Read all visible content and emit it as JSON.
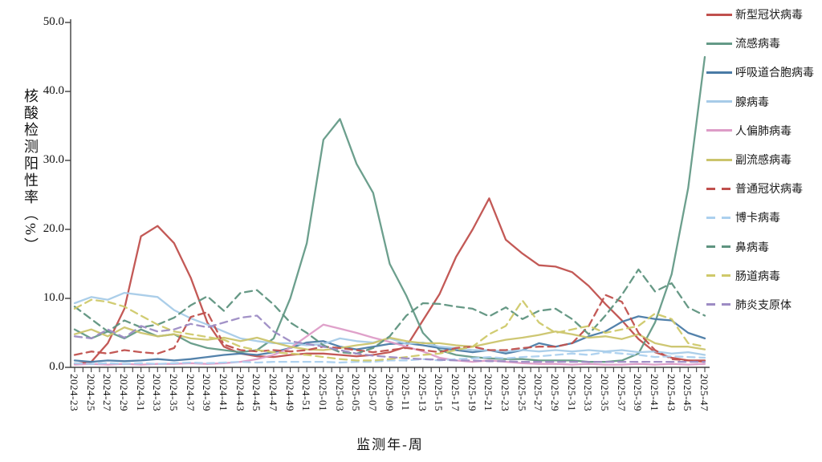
{
  "chart_data": {
    "type": "line",
    "title": "",
    "xlabel": "监测年-周",
    "ylabel": "核酸检测阳性率（%）",
    "ylim": [
      0,
      50
    ],
    "grid": false,
    "legend_position": "right",
    "ytick_values": [
      0,
      10,
      20,
      30,
      40,
      50
    ],
    "ytick_labels": [
      "0.0",
      "10.0",
      "20.0",
      "30.0",
      "40.0",
      "50.0"
    ],
    "x_tick_labels": [
      "2024-23",
      "2024-25",
      "2024-27",
      "2024-29",
      "2024-31",
      "2024-33",
      "2024-35",
      "2024-37",
      "2024-39",
      "2024-41",
      "2024-43",
      "2024-45",
      "2024-47",
      "2024-49",
      "2024-51",
      "2025-01",
      "2025-03",
      "2025-05",
      "2025-07",
      "2025-09",
      "2025-11",
      "2025-13",
      "2025-15",
      "2025-17",
      "2025-19",
      "2025-21",
      "2025-23",
      "2025-25",
      "2025-27",
      "2025-29",
      "2025-31",
      "2025-33",
      "2025-35",
      "2025-37",
      "2025-39",
      "2025-41",
      "2025-43",
      "2025-45",
      "2025-47"
    ],
    "series": [
      {
        "name": "新型冠状病毒",
        "color": "#c0504d",
        "style": "solid",
        "values": [
          0.5,
          0.8,
          3.5,
          8.5,
          19.0,
          20.5,
          18.0,
          13.0,
          6.5,
          3.0,
          2.0,
          1.6,
          1.5,
          1.8,
          2.0,
          2.0,
          1.8,
          1.6,
          1.8,
          2.2,
          3.0,
          6.8,
          10.6,
          16.0,
          20.0,
          24.5,
          18.5,
          16.5,
          14.8,
          14.6,
          13.8,
          11.8,
          9.2,
          6.8,
          4.1,
          2.2,
          1.4,
          1.0,
          1.0
        ]
      },
      {
        "name": "流感病毒",
        "color": "#649a87",
        "style": "solid",
        "values": [
          5.5,
          4.2,
          5.2,
          4.2,
          5.5,
          4.5,
          4.8,
          3.5,
          2.8,
          2.5,
          2.2,
          2.5,
          4.2,
          10.0,
          18.0,
          33.0,
          36.0,
          29.5,
          25.3,
          15.0,
          10.4,
          5.0,
          2.5,
          1.8,
          1.5,
          1.3,
          1.2,
          1.2,
          1.0,
          1.0,
          1.0,
          0.8,
          0.8,
          1.0,
          2.0,
          6.5,
          13.5,
          26.0,
          45.0
        ]
      },
      {
        "name": "呼吸道合胞病毒",
        "color": "#4a7ba6",
        "style": "solid",
        "values": [
          1.0,
          0.8,
          1.0,
          0.9,
          1.0,
          1.2,
          1.0,
          1.2,
          1.5,
          1.8,
          2.0,
          1.8,
          2.2,
          2.8,
          3.6,
          3.8,
          3.0,
          2.6,
          3.0,
          3.4,
          3.5,
          3.2,
          2.8,
          2.5,
          2.2,
          2.5,
          2.0,
          2.5,
          3.5,
          3.0,
          3.5,
          4.5,
          5.2,
          6.6,
          7.4,
          7.0,
          6.8,
          5.0,
          4.2
        ]
      },
      {
        "name": "腺病毒",
        "color": "#a7cbe8",
        "style": "solid",
        "values": [
          9.3,
          10.2,
          9.8,
          10.8,
          10.5,
          10.2,
          8.3,
          7.1,
          6.2,
          5.2,
          4.2,
          3.8,
          3.5,
          3.5,
          3.2,
          3.4,
          4.2,
          3.8,
          3.6,
          4.2,
          3.4,
          3.6,
          3.0,
          2.8,
          2.5,
          2.5,
          2.3,
          2.5,
          2.3,
          2.5,
          2.3,
          2.5,
          2.3,
          2.5,
          2.2,
          2.3,
          2.0,
          2.2,
          1.8
        ]
      },
      {
        "name": "人偏肺病毒",
        "color": "#dd9cc7",
        "style": "solid",
        "values": [
          0.4,
          0.5,
          0.4,
          0.5,
          0.4,
          0.5,
          0.5,
          0.6,
          0.5,
          0.6,
          0.8,
          1.2,
          1.8,
          2.8,
          4.5,
          6.2,
          5.6,
          5.0,
          4.3,
          3.7,
          3.0,
          2.3,
          1.4,
          1.0,
          0.8,
          1.0,
          0.8,
          0.6,
          0.5,
          0.5,
          0.4,
          0.5,
          0.4,
          0.4,
          0.5,
          0.4,
          0.5,
          0.4,
          0.5
        ]
      },
      {
        "name": "副流感病毒",
        "color": "#cbc46c",
        "style": "solid",
        "values": [
          4.8,
          5.5,
          4.5,
          5.8,
          5.0,
          4.5,
          4.8,
          4.2,
          4.0,
          4.3,
          3.8,
          4.3,
          3.6,
          3.0,
          2.6,
          2.5,
          2.8,
          3.2,
          3.5,
          4.3,
          3.8,
          3.5,
          3.5,
          3.2,
          3.0,
          3.5,
          4.0,
          4.3,
          4.7,
          5.2,
          4.8,
          4.3,
          4.5,
          4.1,
          4.8,
          3.5,
          3.0,
          3.0,
          2.6
        ]
      },
      {
        "name": "普通冠状病毒",
        "color": "#c0504d",
        "style": "dashed",
        "values": [
          1.8,
          2.3,
          2.0,
          2.5,
          2.2,
          2.0,
          2.8,
          7.3,
          8.0,
          3.3,
          2.5,
          2.3,
          2.5,
          2.3,
          2.5,
          3.0,
          2.8,
          2.5,
          2.2,
          2.5,
          2.8,
          2.5,
          2.2,
          2.8,
          3.0,
          2.5,
          2.5,
          2.8,
          3.0,
          3.0,
          3.5,
          6.0,
          10.5,
          9.5,
          5.0,
          2.5,
          1.2,
          1.0,
          0.8
        ]
      },
      {
        "name": "博卡病毒",
        "color": "#abd0ee",
        "style": "dashed",
        "values": [
          0.6,
          0.5,
          0.6,
          0.5,
          0.6,
          0.5,
          0.6,
          0.7,
          0.6,
          0.7,
          0.8,
          0.7,
          0.8,
          0.8,
          0.8,
          0.8,
          0.7,
          0.8,
          0.8,
          1.0,
          1.0,
          1.2,
          1.0,
          1.2,
          1.3,
          1.5,
          1.3,
          1.5,
          1.6,
          1.8,
          2.0,
          1.8,
          2.2,
          2.0,
          1.8,
          1.5,
          1.6,
          1.5,
          1.4
        ]
      },
      {
        "name": "鼻病毒",
        "color": "#5f9480",
        "style": "dashed",
        "values": [
          8.8,
          7.0,
          5.2,
          6.8,
          5.8,
          6.2,
          7.2,
          9.0,
          10.3,
          8.2,
          10.8,
          11.2,
          9.1,
          6.5,
          5.0,
          3.2,
          2.2,
          2.0,
          2.8,
          4.5,
          7.5,
          9.3,
          9.2,
          8.8,
          8.5,
          7.4,
          8.7,
          7.0,
          8.2,
          8.5,
          7.0,
          4.8,
          7.5,
          10.5,
          14.2,
          11.0,
          12.2,
          8.7,
          7.5
        ]
      },
      {
        "name": "肠道病毒",
        "color": "#cfc96a",
        "style": "dashed",
        "values": [
          8.5,
          9.8,
          9.5,
          8.8,
          7.5,
          6.2,
          5.2,
          4.8,
          4.4,
          4.0,
          3.0,
          2.5,
          2.2,
          2.0,
          1.8,
          1.5,
          1.2,
          1.0,
          1.0,
          1.2,
          1.5,
          1.8,
          2.0,
          2.5,
          3.0,
          4.8,
          6.0,
          9.7,
          6.5,
          5.0,
          5.5,
          6.0,
          5.0,
          5.5,
          6.0,
          7.8,
          7.0,
          3.5,
          3.0
        ]
      },
      {
        "name": "肺炎支原体",
        "color": "#9d8cc4",
        "style": "dashed",
        "values": [
          4.5,
          4.2,
          5.5,
          4.3,
          6.0,
          5.2,
          5.5,
          6.3,
          5.8,
          6.5,
          7.2,
          7.5,
          5.2,
          3.8,
          3.4,
          3.0,
          2.5,
          2.0,
          1.7,
          1.5,
          1.3,
          1.2,
          1.1,
          1.0,
          1.0,
          0.9,
          0.9,
          0.8,
          0.8,
          0.8,
          0.8,
          0.8,
          0.8,
          0.8,
          0.8,
          0.8,
          0.8,
          0.8,
          0.8
        ]
      }
    ]
  }
}
